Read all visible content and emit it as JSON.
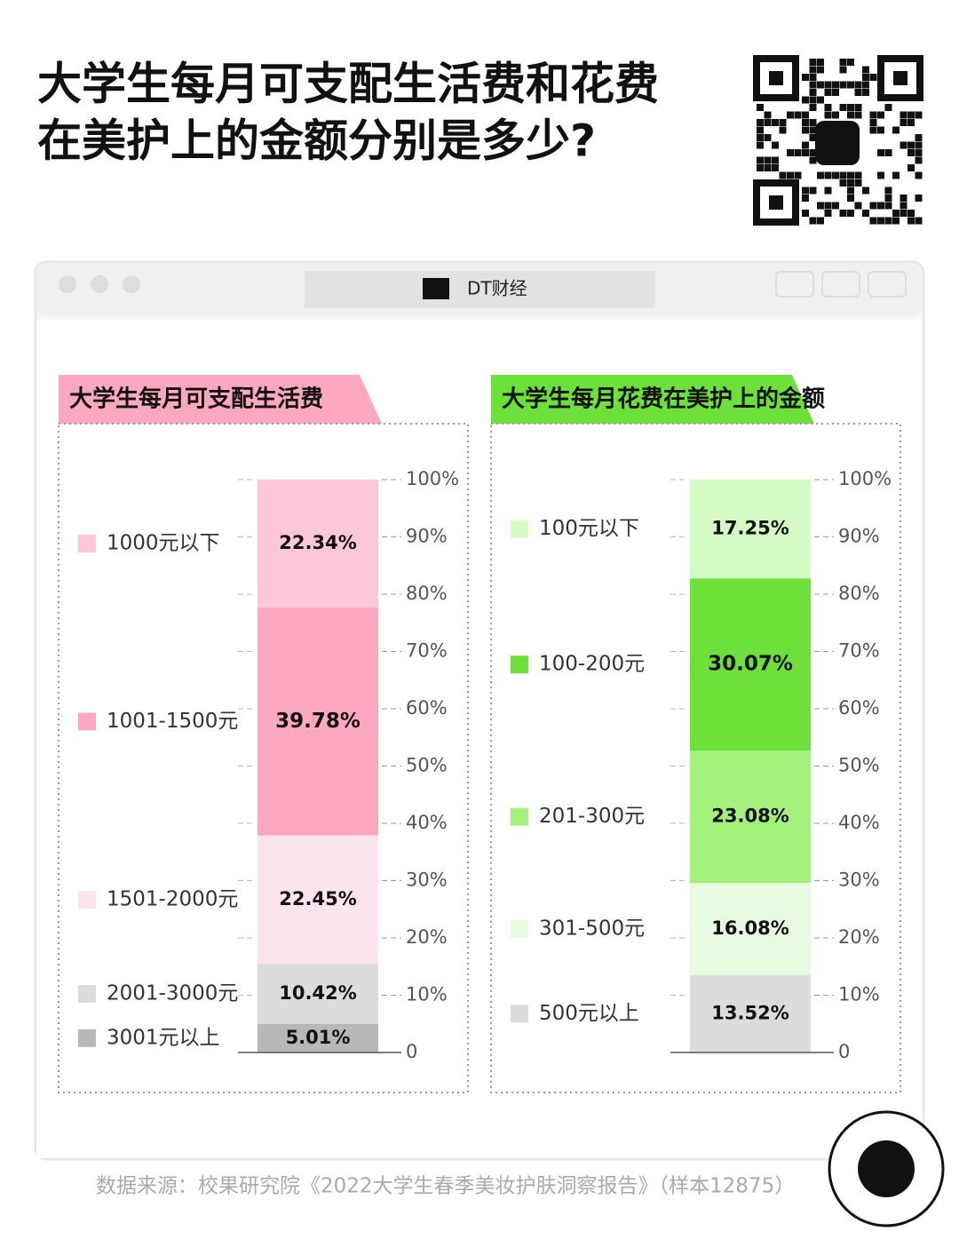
{
  "title": [
    "大学生每月可支配生活费和花费",
    "在美护上的金额分别是多少?"
  ],
  "window_title": "DT财经",
  "source": "数据来源：校果研究院《2022大学生春季美妆护肤洞察报告》（样本12875）",
  "chart_data": [
    {
      "type": "stacked_bar",
      "title": "大学生每月可支配生活费",
      "header_color": "#fba8c0",
      "series": [
        {
          "name": "1000元以下",
          "color": "#fcc8d8",
          "values": [
            22.34
          ],
          "value_labels": [
            "22.34%"
          ]
        },
        {
          "name": "1001-1500元",
          "color": "#fba8c0",
          "values": [
            39.78
          ],
          "value_labels": [
            "39.78%"
          ]
        },
        {
          "name": "1501-2000元",
          "color": "#fce4ee",
          "values": [
            22.45
          ],
          "value_labels": [
            "22.45%"
          ]
        },
        {
          "name": "2001-3000元",
          "color": "#dcdcdc",
          "values": [
            10.42
          ],
          "value_labels": [
            "10.42%"
          ]
        },
        {
          "name": "3001元以上",
          "color": "#b8b8b8",
          "values": [
            5.01
          ],
          "value_labels": [
            "5.01%"
          ]
        }
      ],
      "ylim": [
        0,
        100
      ],
      "yticks": [
        0,
        {
          "value": 10,
          "label": "10%"
        },
        {
          "value": 20,
          "label": "20%"
        },
        {
          "value": 30,
          "label": "30%"
        },
        {
          "value": 40,
          "label": "40%"
        },
        {
          "value": 50,
          "label": "50%"
        },
        {
          "value": 60,
          "label": "60%"
        },
        {
          "value": 70,
          "label": "70%"
        },
        {
          "value": 80,
          "label": "80%"
        },
        {
          "value": 90,
          "label": "90%"
        },
        {
          "value": 100,
          "label": "100%"
        }
      ]
    },
    {
      "type": "stacked_bar",
      "title": "大学生每月花费在美护上的金额",
      "header_color": "#6ee03a",
      "series": [
        {
          "name": "100元以下",
          "color": "#d4fbc4",
          "values": [
            17.25
          ],
          "value_labels": [
            "17.25%"
          ]
        },
        {
          "name": "100-200元",
          "color": "#6ee03a",
          "values": [
            30.07
          ],
          "value_labels": [
            "30.07%"
          ]
        },
        {
          "name": "201-300元",
          "color": "#a3f07a",
          "values": [
            23.08
          ],
          "value_labels": [
            "23.08%"
          ]
        },
        {
          "name": "301-500元",
          "color": "#e8fbe0",
          "values": [
            16.08
          ],
          "value_labels": [
            "16.08%"
          ]
        },
        {
          "name": "500元以上",
          "color": "#dcdcdc",
          "values": [
            13.52
          ],
          "value_labels": [
            "13.52%"
          ]
        }
      ],
      "ylim": [
        0,
        100
      ],
      "yticks": [
        0,
        {
          "value": 10,
          "label": "10%"
        },
        {
          "value": 20,
          "label": "20%"
        },
        {
          "value": 30,
          "label": "30%"
        },
        {
          "value": 40,
          "label": "40%"
        },
        {
          "value": 50,
          "label": "50%"
        },
        {
          "value": 60,
          "label": "60%"
        },
        {
          "value": 70,
          "label": "70%"
        },
        {
          "value": 80,
          "label": "80%"
        },
        {
          "value": 90,
          "label": "90%"
        },
        {
          "value": 100,
          "label": "100%"
        }
      ]
    }
  ]
}
